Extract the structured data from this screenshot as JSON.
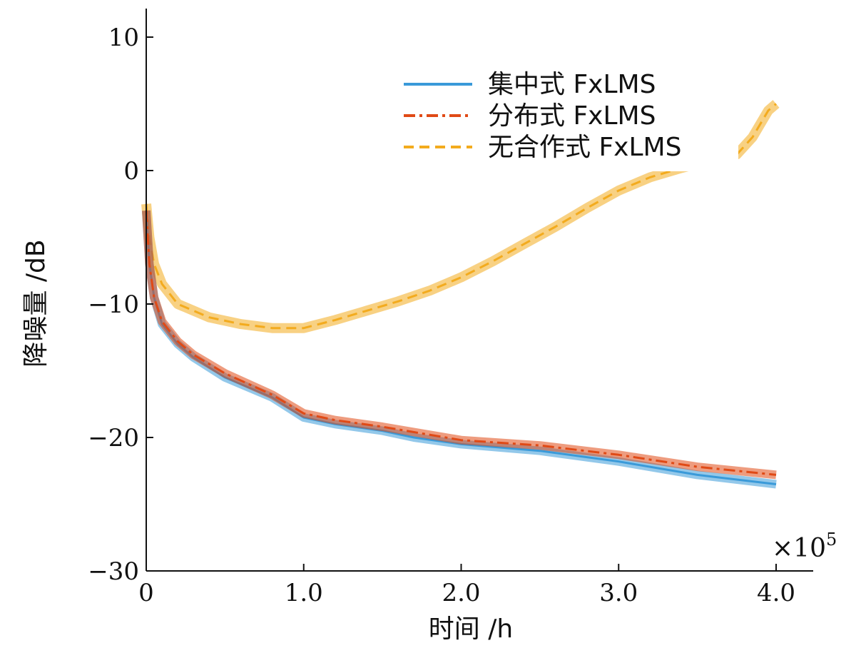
{
  "chart_data": {
    "type": "line",
    "xlabel": "时间 /h",
    "ylabel": "降噪量 /dB",
    "x_multiplier": {
      "base": "×10",
      "exponent": "5"
    },
    "xlim": [
      0,
      4.0
    ],
    "ylim": [
      -30,
      10
    ],
    "x_ticks": [
      {
        "value": 0,
        "label": "0"
      },
      {
        "value": 1.0,
        "label": "1.0"
      },
      {
        "value": 2.0,
        "label": "2.0"
      },
      {
        "value": 3.0,
        "label": "3.0"
      },
      {
        "value": 4.0,
        "label": "4.0"
      }
    ],
    "y_ticks": [
      {
        "value": 10,
        "label": "10"
      },
      {
        "value": 0,
        "label": "0"
      },
      {
        "value": -10,
        "label": "−10"
      },
      {
        "value": -20,
        "label": "−20"
      },
      {
        "value": -30,
        "label": "−30"
      }
    ],
    "grid": false,
    "legend_position": "top-right",
    "series": [
      {
        "name": "集中式 FxLMS",
        "color": "#3a9ad9",
        "dash": "solid",
        "x": [
          0,
          0.02,
          0.05,
          0.1,
          0.2,
          0.3,
          0.5,
          0.8,
          1.0,
          1.2,
          1.5,
          1.7,
          2.0,
          2.5,
          3.0,
          3.5,
          4.0
        ],
        "y": [
          -3,
          -7,
          -9.5,
          -11.5,
          -13,
          -14,
          -15.5,
          -17,
          -18.5,
          -19,
          -19.5,
          -20,
          -20.5,
          -21,
          -21.8,
          -22.8,
          -23.5
        ]
      },
      {
        "name": "分布式 FxLMS",
        "color": "#e04a16",
        "dash": "dash-dot",
        "x": [
          0,
          0.02,
          0.05,
          0.1,
          0.2,
          0.3,
          0.5,
          0.8,
          1.0,
          1.2,
          1.5,
          1.7,
          2.0,
          2.5,
          3.0,
          3.5,
          4.0
        ],
        "y": [
          -3,
          -7,
          -9.5,
          -11.3,
          -12.8,
          -13.8,
          -15.2,
          -16.8,
          -18.2,
          -18.7,
          -19.2,
          -19.6,
          -20.2,
          -20.6,
          -21.3,
          -22.2,
          -22.8
        ]
      },
      {
        "name": "无合作式 FxLMS",
        "color": "#f3ab1e",
        "dash": "dashed",
        "x": [
          0,
          0.02,
          0.05,
          0.1,
          0.2,
          0.4,
          0.6,
          0.8,
          1.0,
          1.2,
          1.4,
          1.6,
          1.8,
          2.0,
          2.2,
          2.4,
          2.6,
          2.8,
          3.0,
          3.2,
          3.4,
          3.6,
          3.75,
          3.85,
          3.95,
          4.0
        ],
        "y": [
          -2.5,
          -5,
          -7,
          -8.5,
          -10,
          -11,
          -11.5,
          -11.8,
          -11.8,
          -11.2,
          -10.5,
          -9.8,
          -9.0,
          -8.0,
          -6.8,
          -5.5,
          -4.2,
          -2.8,
          -1.5,
          -0.5,
          0.2,
          0.8,
          1.2,
          2.5,
          4.5,
          5.0
        ]
      }
    ]
  }
}
